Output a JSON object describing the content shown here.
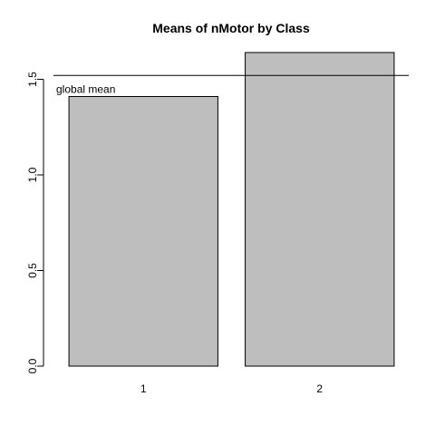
{
  "chart_data": {
    "type": "bar",
    "title": "Means of nMotor by Class",
    "xlabel": "",
    "ylabel": "",
    "categories": [
      "1",
      "2"
    ],
    "values": [
      1.41,
      1.64
    ],
    "ylim": [
      0,
      1.7
    ],
    "yticks": [
      0.0,
      0.5,
      1.0,
      1.5
    ],
    "ytick_labels": [
      "0.0",
      "0.5",
      "1.0",
      "1.5"
    ],
    "reference_line": {
      "value": 1.52,
      "label": "global mean"
    },
    "bar_color": "#bebebe",
    "bar_border_color": "#000000",
    "grid": false,
    "legend": "none"
  }
}
